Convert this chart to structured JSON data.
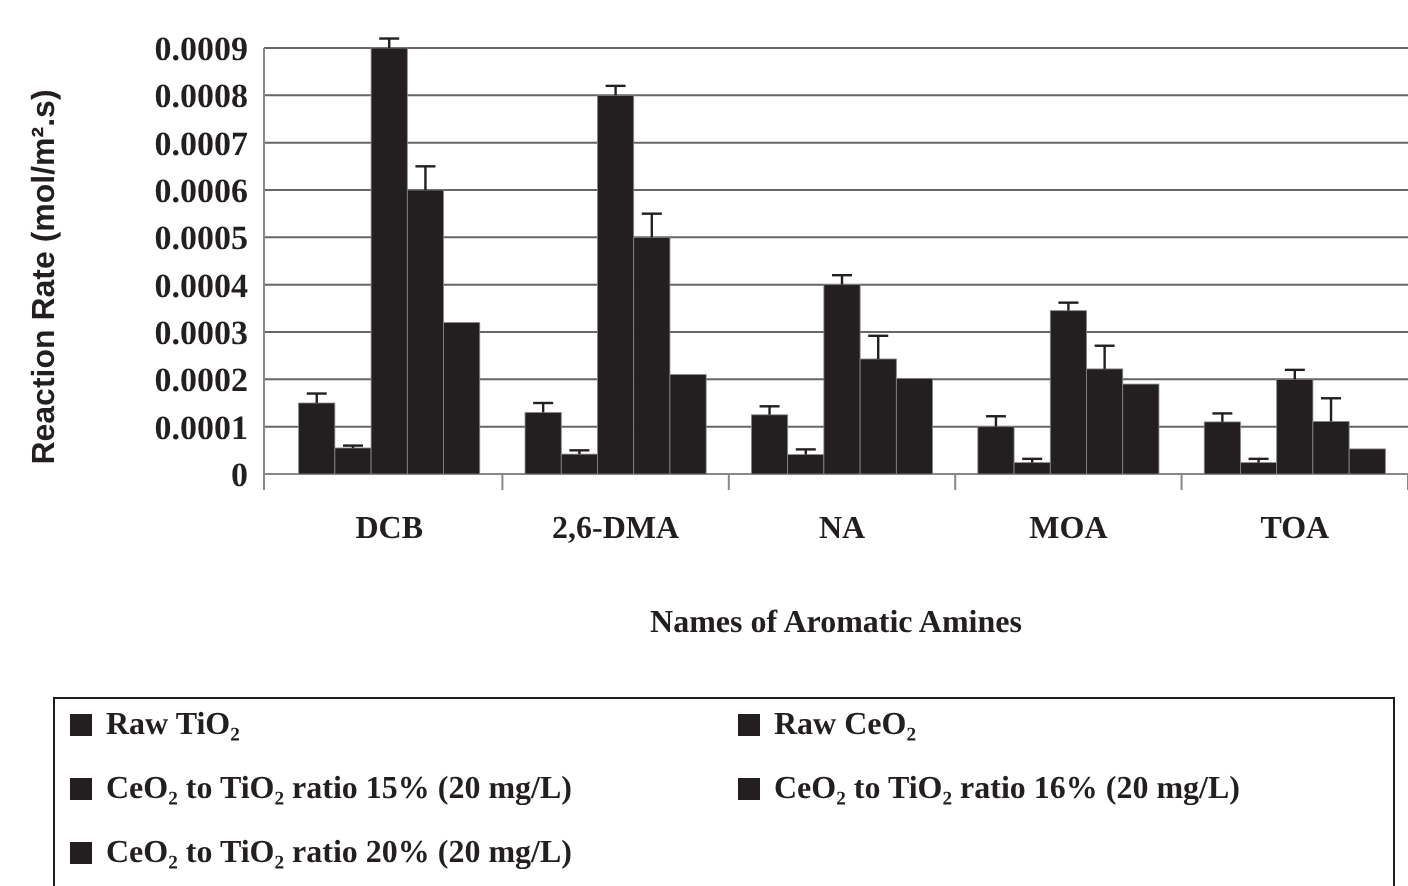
{
  "chart_data": {
    "type": "bar",
    "xlabel": "Names of Aromatic Amines",
    "ylabel": "Reaction Rate (mol/m².s)",
    "categories": [
      "DCB",
      "2,6-DMA",
      "NA",
      "MOA",
      "TOA"
    ],
    "series": [
      {
        "name": "Raw TiO₂",
        "color": "#231f20",
        "values": [
          0.00015,
          0.00013,
          0.000125,
          0.0001,
          0.00011
        ],
        "errors": [
          [
            0.00015,
            0.00017
          ],
          [
            0.00013,
            0.00015
          ],
          [
            0.000125,
            0.000143
          ],
          [
            0.0001,
            0.000122
          ],
          [
            0.00011,
            0.000128
          ]
        ]
      },
      {
        "name": "Raw CeO₂",
        "color": "#231f20",
        "values": [
          5.5e-05,
          4.2e-05,
          4.1e-05,
          2.4e-05,
          2.4e-05
        ],
        "errors": [
          [
            5.5e-05,
            6e-05
          ],
          [
            4.2e-05,
            5e-05
          ],
          [
            4.1e-05,
            5.2e-05
          ],
          [
            2.4e-05,
            3.2e-05
          ],
          [
            2.4e-05,
            3.2e-05
          ]
        ]
      },
      {
        "name": "CeO₂ to TiO₂ ratio 15% (20 mg/L)",
        "color": "#231f20",
        "values": [
          0.0009,
          0.0008,
          0.0004,
          0.000345,
          0.0002
        ],
        "errors": [
          [
            0.0009,
            0.00092
          ],
          [
            0.0008,
            0.00082
          ],
          [
            0.0004,
            0.00042
          ],
          [
            0.000345,
            0.000362
          ],
          [
            0.0002,
            0.00022
          ]
        ]
      },
      {
        "name": "CeO₂ to TiO₂ ratio 16% (20 mg/L)",
        "color": "#231f20",
        "values": [
          0.0006,
          0.0005,
          0.000243,
          0.000222,
          0.000111
        ],
        "errors": [
          [
            0.0006,
            0.00065
          ],
          [
            0.0005,
            0.00055
          ],
          [
            0.000243,
            0.000292
          ],
          [
            0.000222,
            0.000271
          ],
          [
            0.000111,
            0.00016
          ]
        ]
      },
      {
        "name": "CeO₂ to TiO₂ ratio 20% (20 mg/L)",
        "color": "#231f20",
        "values": [
          0.00032,
          0.00021,
          0.000202,
          0.00019,
          5.3e-05
        ]
      }
    ],
    "ylim": [
      0,
      0.0009
    ],
    "yticks": [
      0,
      0.0001,
      0.0002,
      0.0003,
      0.0004,
      0.0005,
      0.0006,
      0.0007,
      0.0008,
      0.0009
    ],
    "grid": "y",
    "legend": "bottom"
  }
}
